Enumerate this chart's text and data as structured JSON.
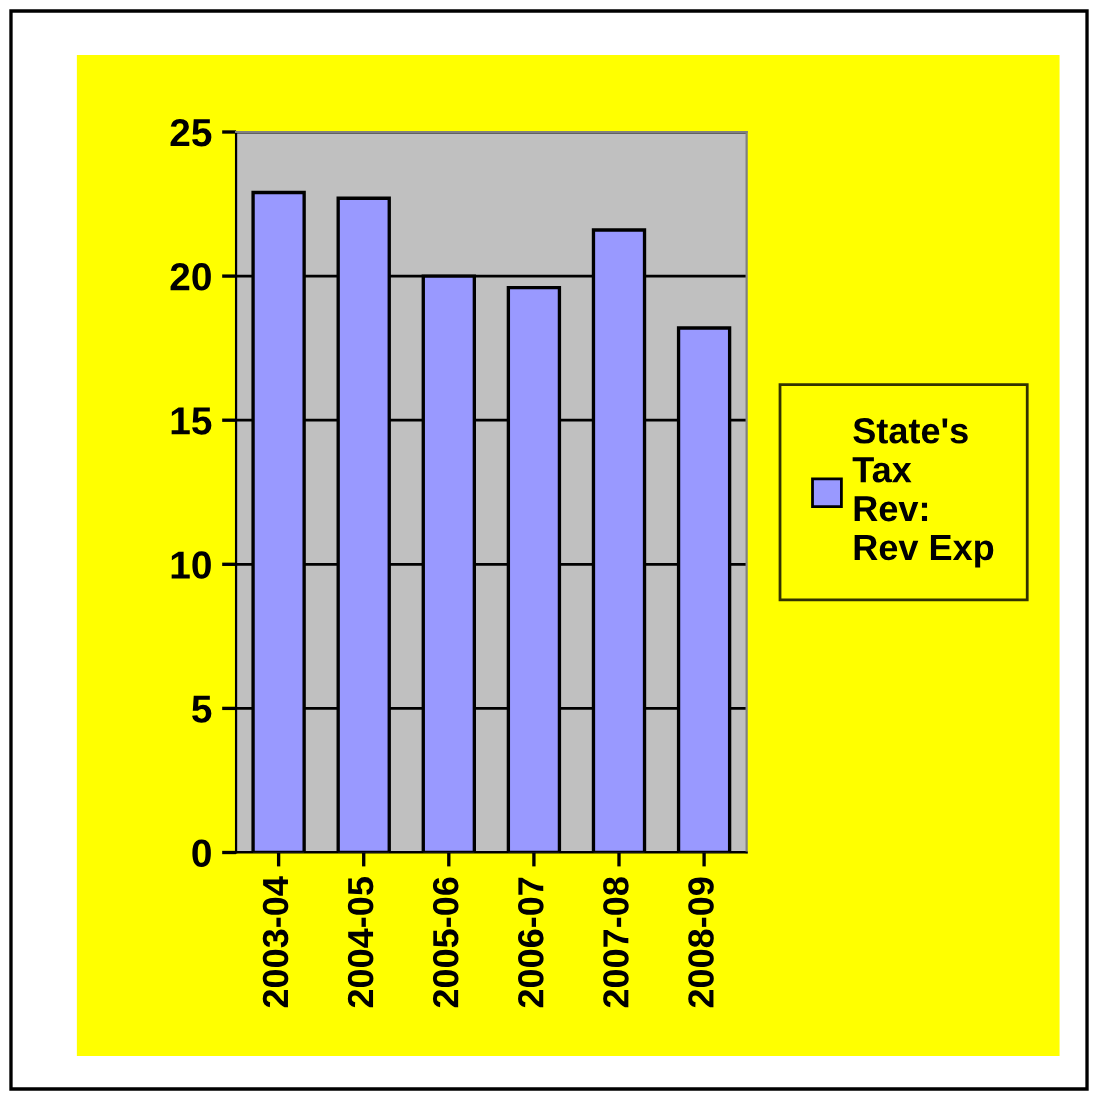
{
  "chart_data": {
    "type": "bar",
    "categories": [
      "2003-04",
      "2004-05",
      "2005-06",
      "2006-07",
      "2007-08",
      "2008-09"
    ],
    "series": [
      {
        "name": "State's\nTax\nRev:\nRev Exp",
        "color": "#9999ff",
        "values": [
          22.9,
          22.7,
          20.0,
          19.6,
          21.6,
          18.2
        ]
      }
    ],
    "ylim": [
      0,
      25
    ],
    "yticks": [
      0,
      5,
      10,
      15,
      20,
      25
    ],
    "grid": "y",
    "legend": "right"
  }
}
